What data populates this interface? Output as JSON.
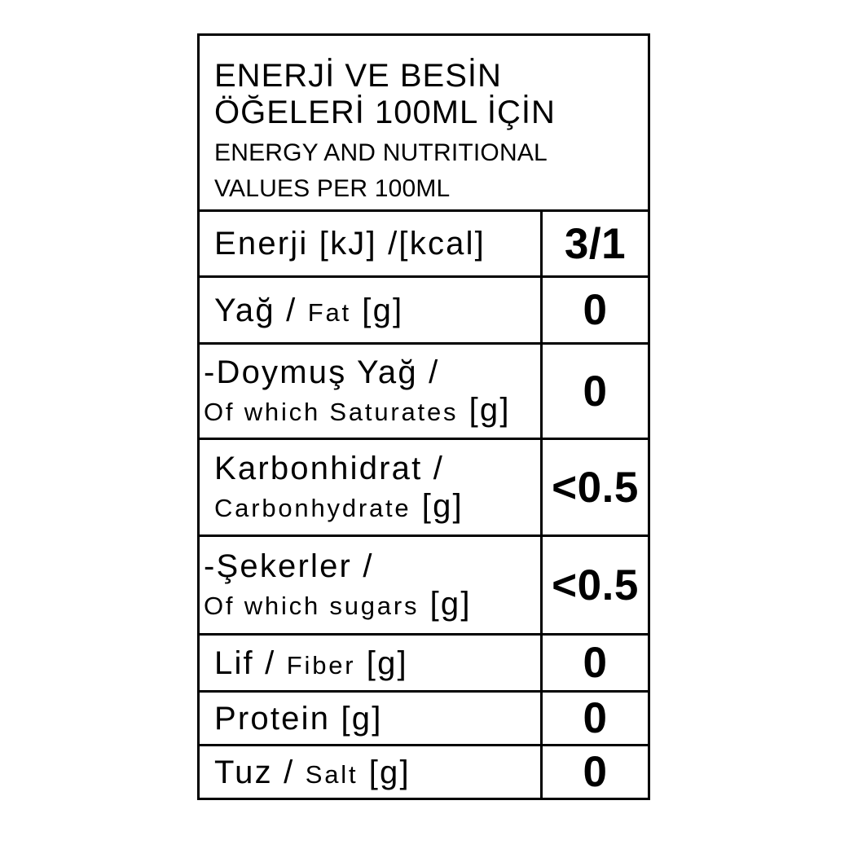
{
  "header": {
    "title_tr_lines": [
      "ENERJİ VE BESİN",
      "ÖĞELERİ 100ML İÇİN"
    ],
    "title_en_lines": [
      "ENERGY AND NUTRITIONAL",
      "VALUES PER 100ML"
    ]
  },
  "rows": [
    {
      "id": "energy",
      "sub": false,
      "lines": [
        [
          {
            "t": "Enerji [kJ] /[kcal]",
            "s": "lg"
          }
        ]
      ],
      "value": "3/1"
    },
    {
      "id": "fat",
      "sub": false,
      "lines": [
        [
          {
            "t": "Yağ / ",
            "s": "lg"
          },
          {
            "t": "Fat",
            "s": "sm"
          },
          {
            "t": " [g]",
            "s": "lg"
          }
        ]
      ],
      "value": "0"
    },
    {
      "id": "saturated-fat",
      "sub": true,
      "lines": [
        [
          {
            "t": "-Doymuş Yağ /",
            "s": "lg"
          }
        ],
        [
          {
            "t": "Of which Saturates",
            "s": "sm"
          },
          {
            "t": " [g]",
            "s": "lg"
          }
        ]
      ],
      "value": "0"
    },
    {
      "id": "carbohydrate",
      "sub": false,
      "lines": [
        [
          {
            "t": "Karbonhidrat /",
            "s": "lg"
          }
        ],
        [
          {
            "t": "Carbonhydrate",
            "s": "sm"
          },
          {
            "t": " [g]",
            "s": "lg"
          }
        ]
      ],
      "value": "<0.5"
    },
    {
      "id": "sugars",
      "sub": true,
      "lines": [
        [
          {
            "t": "-Şekerler /",
            "s": "lg"
          }
        ],
        [
          {
            "t": "Of which sugars",
            "s": "sm"
          },
          {
            "t": " [g]",
            "s": "lg"
          }
        ]
      ],
      "value": "<0.5"
    },
    {
      "id": "fiber",
      "sub": false,
      "lines": [
        [
          {
            "t": "Lif / ",
            "s": "lg"
          },
          {
            "t": "Fiber",
            "s": "sm"
          },
          {
            "t": " [g]",
            "s": "lg"
          }
        ]
      ],
      "value": "0"
    },
    {
      "id": "protein",
      "sub": false,
      "lines": [
        [
          {
            "t": "Protein [g]",
            "s": "lg"
          }
        ]
      ],
      "value": "0"
    },
    {
      "id": "salt",
      "sub": false,
      "lines": [
        [
          {
            "t": "Tuz / ",
            "s": "lg"
          },
          {
            "t": "Salt",
            "s": "sm"
          },
          {
            "t": " [g]",
            "s": "lg"
          }
        ]
      ],
      "value": "0"
    }
  ],
  "colors": {
    "text": "#000000",
    "border": "#000000",
    "background": "#ffffff"
  }
}
